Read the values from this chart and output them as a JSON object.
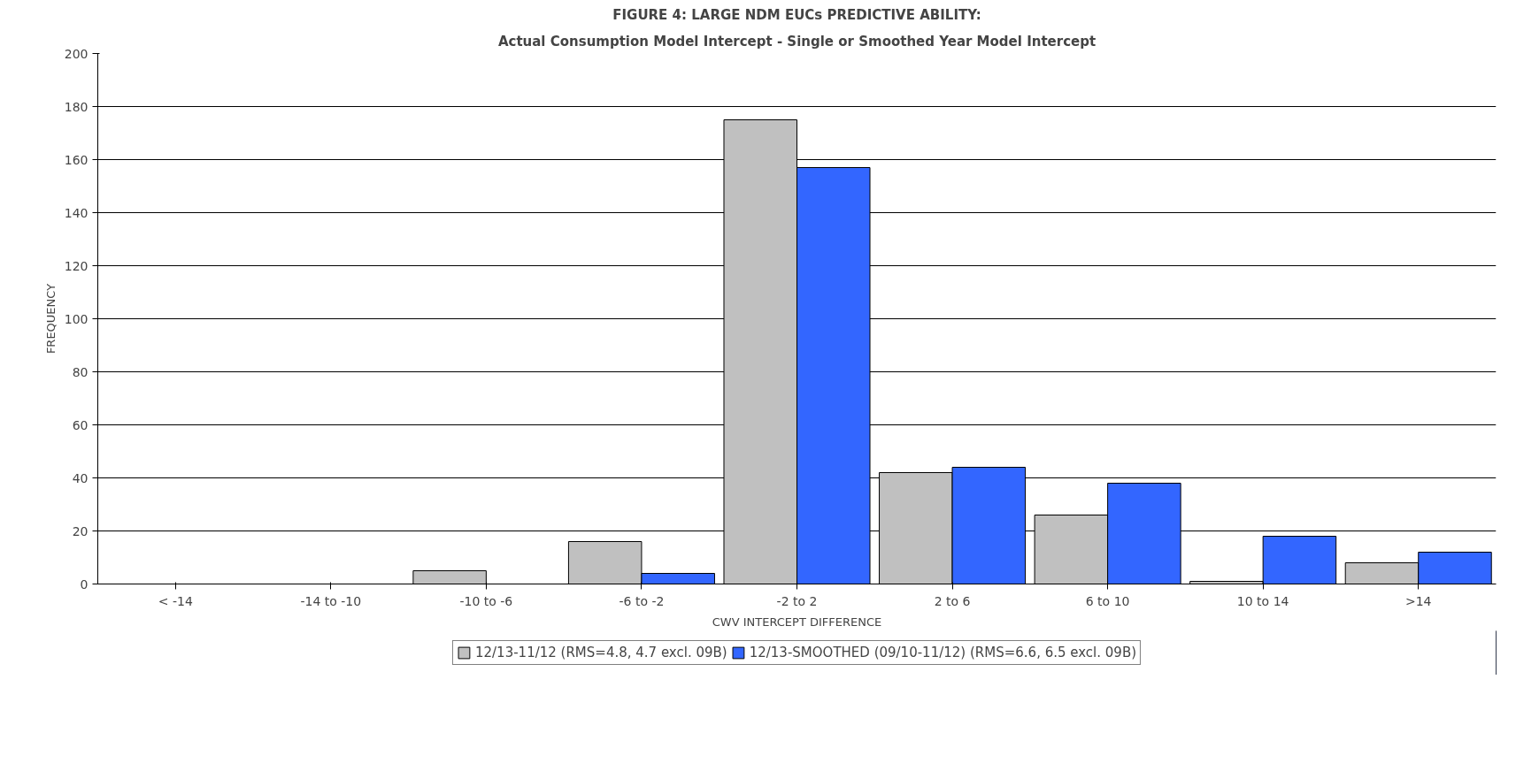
{
  "chart_data": {
    "type": "bar",
    "title": "FIGURE 4: LARGE NDM EUCs PREDICTIVE ABILITY:",
    "subtitle": "Actual Consumption Model Intercept - Single or Smoothed Year Model Intercept",
    "xlabel": "CWV INTERCEPT DIFFERENCE",
    "ylabel": "FREQUENCY",
    "categories": [
      "< -14",
      "-14 to -10",
      "-10 to -6",
      "-6 to -2",
      "-2 to 2",
      "2 to 6",
      "6 to 10",
      "10 to 14",
      ">14"
    ],
    "series": [
      {
        "name": "12/13-11/12 (RMS=4.8, 4.7 excl. 09B)",
        "color": "#c0c0c0",
        "values": [
          0,
          0,
          5,
          16,
          175,
          42,
          26,
          1,
          8
        ]
      },
      {
        "name": "12/13-SMOOTHED (09/10-11/12) (RMS=6.6, 6.5 excl. 09B)",
        "color": "#3366ff",
        "values": [
          0,
          0,
          0,
          4,
          157,
          44,
          38,
          18,
          12
        ]
      }
    ],
    "ylim": [
      0,
      200
    ],
    "yticks": [
      0,
      20,
      40,
      60,
      80,
      100,
      120,
      140,
      160,
      180,
      200
    ],
    "grid": "y",
    "legend": "bottom"
  }
}
